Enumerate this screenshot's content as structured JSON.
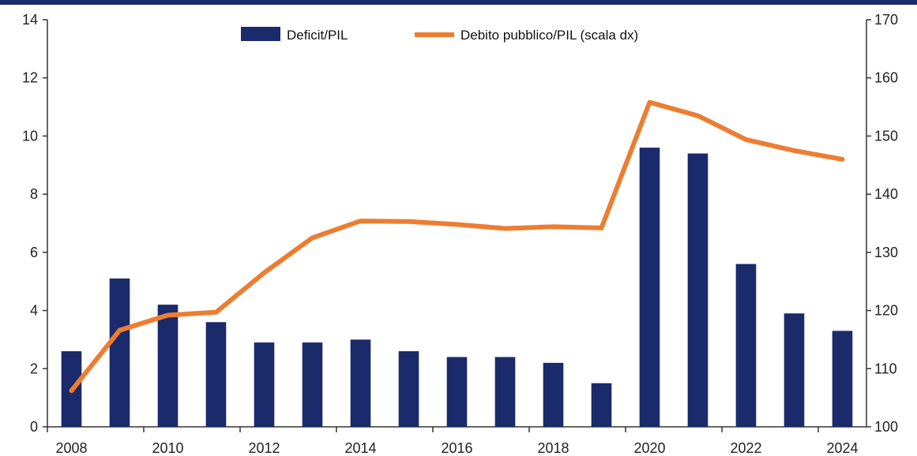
{
  "chart_data": {
    "type": "bar+line",
    "x": [
      2008,
      2009,
      2010,
      2011,
      2012,
      2013,
      2014,
      2015,
      2016,
      2017,
      2018,
      2019,
      2020,
      2021,
      2022,
      2023,
      2024
    ],
    "x_tick_labels": [
      "2008",
      "2010",
      "2012",
      "2014",
      "2016",
      "2018",
      "2020",
      "2022",
      "2024"
    ],
    "series": [
      {
        "name": "Deficit/PIL",
        "type": "bar",
        "axis": "left",
        "color": "#1b2a6b",
        "values": [
          2.6,
          5.1,
          4.2,
          3.6,
          2.9,
          2.9,
          3.0,
          2.6,
          2.4,
          2.4,
          2.2,
          1.5,
          9.6,
          9.4,
          5.6,
          3.9,
          3.3
        ]
      },
      {
        "name": "Debito pubblico/PIL (scala dx)",
        "type": "line",
        "axis": "right",
        "color": "#ed7d31",
        "values": [
          106.2,
          116.6,
          119.2,
          119.7,
          126.5,
          132.5,
          135.4,
          135.3,
          134.8,
          134.1,
          134.4,
          134.2,
          155.8,
          153.5,
          149.4,
          147.5,
          146.0
        ]
      }
    ],
    "y_left": {
      "min": 0,
      "max": 14,
      "ticks": [
        "0",
        "2",
        "4",
        "6",
        "8",
        "10",
        "12",
        "14"
      ]
    },
    "y_right": {
      "min": 100,
      "max": 170,
      "ticks": [
        "100",
        "110",
        "120",
        "130",
        "140",
        "150",
        "160",
        "170"
      ]
    },
    "legend_position": "top-center",
    "grid": false,
    "header_band_color": "#1b2a6b"
  }
}
